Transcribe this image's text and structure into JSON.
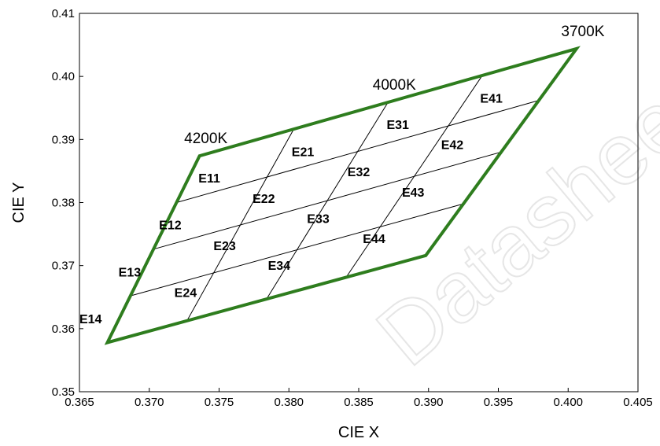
{
  "chart_data": {
    "type": "scatter",
    "title": "",
    "xlabel": "CIE X",
    "ylabel": "CIE Y",
    "xlim": [
      0.365,
      0.405
    ],
    "ylim": [
      0.35,
      0.41
    ],
    "x_ticks": [
      "0.365",
      "0.370",
      "0.375",
      "0.380",
      "0.385",
      "0.390",
      "0.395",
      "0.400",
      "0.405"
    ],
    "y_ticks": [
      "0.35",
      "0.36",
      "0.37",
      "0.38",
      "0.39",
      "0.40",
      "0.41"
    ],
    "grid": false,
    "outline_color": "#2e7d1e",
    "outline": [
      [
        0.3736,
        0.3874
      ],
      [
        0.4006,
        0.4044
      ],
      [
        0.3898,
        0.3716
      ],
      [
        0.367,
        0.3578
      ]
    ],
    "cct_labels": [
      {
        "text": "4200K",
        "x": 0.3736,
        "y": 0.3874
      },
      {
        "text": "4000K",
        "x": 0.3871,
        "y": 0.3959
      },
      {
        "text": "3700K",
        "x": 0.4006,
        "y": 0.4044
      }
    ],
    "bins": [
      {
        "label": "E11",
        "x": 0.3743,
        "y": 0.3839
      },
      {
        "label": "E12",
        "x": 0.3715,
        "y": 0.3765
      },
      {
        "label": "E13",
        "x": 0.3686,
        "y": 0.369
      },
      {
        "label": "E14",
        "x": 0.3658,
        "y": 0.3616
      },
      {
        "label": "E21",
        "x": 0.381,
        "y": 0.3881
      },
      {
        "label": "E22",
        "x": 0.3782,
        "y": 0.3807
      },
      {
        "label": "E23",
        "x": 0.3754,
        "y": 0.3732
      },
      {
        "label": "E24",
        "x": 0.3726,
        "y": 0.3658
      },
      {
        "label": "E31",
        "x": 0.3878,
        "y": 0.3924
      },
      {
        "label": "E32",
        "x": 0.385,
        "y": 0.3849
      },
      {
        "label": "E33",
        "x": 0.3821,
        "y": 0.3775
      },
      {
        "label": "E34",
        "x": 0.3793,
        "y": 0.3701
      },
      {
        "label": "E41",
        "x": 0.3945,
        "y": 0.3966
      },
      {
        "label": "E42",
        "x": 0.3917,
        "y": 0.3892
      },
      {
        "label": "E43",
        "x": 0.3889,
        "y": 0.3817
      },
      {
        "label": "E44",
        "x": 0.3861,
        "y": 0.3743
      }
    ],
    "watermark": "Datasheet"
  }
}
